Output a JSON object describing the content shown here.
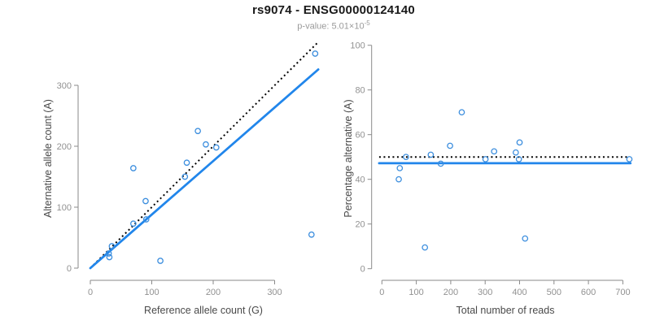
{
  "header": {
    "title": "rs9074 - ENSG00000124140",
    "subtitle_prefix": "p-value: 5.01×10",
    "subtitle_exponent": "-5"
  },
  "colors": {
    "title": "#1a1a1a",
    "subtitle": "#9a9a9a",
    "axis": "#8a8a8a",
    "tick_label": "#919191",
    "axis_title": "#4a4a4a",
    "point": "#3c8ede",
    "fit_line": "#2186eb",
    "reference_line": "#000000",
    "background": "#ffffff"
  },
  "chart_data": [
    {
      "type": "scatter",
      "name": "allele-counts",
      "xlabel": "Reference allele count (G)",
      "ylabel": "Alternative allele count (A)",
      "xticks": [
        0,
        100,
        200,
        300
      ],
      "yticks": [
        0,
        100,
        200,
        300
      ],
      "xlim": [
        0,
        385
      ],
      "ylim": [
        0,
        380
      ],
      "points": [
        [
          30,
          24
        ],
        [
          31,
          18
        ],
        [
          35,
          36
        ],
        [
          70,
          73
        ],
        [
          70,
          164
        ],
        [
          90,
          110
        ],
        [
          91,
          80
        ],
        [
          114,
          12
        ],
        [
          154,
          150
        ],
        [
          157,
          173
        ],
        [
          175,
          225
        ],
        [
          188,
          203
        ],
        [
          205,
          198
        ],
        [
          360,
          55
        ],
        [
          366,
          352
        ]
      ],
      "lines": [
        {
          "name": "identity-reference",
          "style": "dotted",
          "x1": 0,
          "y1": 0,
          "x2": 370,
          "y2": 370
        },
        {
          "name": "fit",
          "style": "solid",
          "x1": 0,
          "y1": 0,
          "x2": 371,
          "y2": 326
        }
      ]
    },
    {
      "type": "scatter",
      "name": "percentage-vs-coverage",
      "xlabel": "Total number of reads",
      "ylabel": "Percentage alternative (A)",
      "xticks": [
        0,
        100,
        200,
        300,
        400,
        500,
        600,
        700
      ],
      "yticks": [
        0,
        20,
        40,
        60,
        80,
        100
      ],
      "xlim": [
        -10,
        730
      ],
      "ylim": [
        0,
        100
      ],
      "points": [
        [
          49,
          40
        ],
        [
          52,
          45
        ],
        [
          70,
          50
        ],
        [
          125,
          9.5
        ],
        [
          142,
          51
        ],
        [
          171,
          47
        ],
        [
          198,
          55
        ],
        [
          232,
          70
        ],
        [
          301,
          49
        ],
        [
          326,
          52.5
        ],
        [
          389,
          52
        ],
        [
          398,
          49
        ],
        [
          400,
          56.5
        ],
        [
          416,
          13.5
        ],
        [
          719,
          49
        ]
      ],
      "lines": [
        {
          "name": "expected-50pct-reference",
          "style": "dotted",
          "x1": -8,
          "y1": 50,
          "x2": 712,
          "y2": 50
        },
        {
          "name": "fit",
          "style": "solid",
          "x1": -8,
          "y1": 47.2,
          "x2": 722,
          "y2": 47.2
        }
      ]
    }
  ]
}
